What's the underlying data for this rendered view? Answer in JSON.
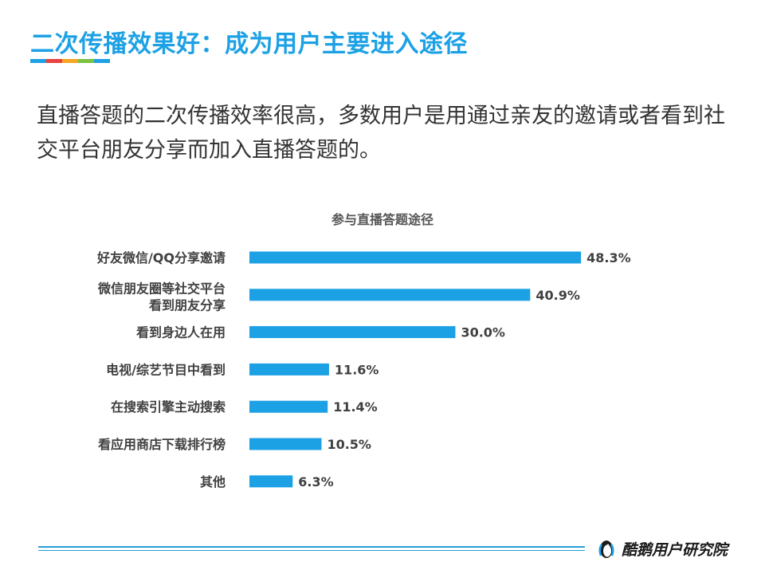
{
  "slide": {
    "title": "二次传播效果好：成为用户主要进入途径",
    "title_color": "#1da1e5",
    "underline_colors": [
      "#1da1e5",
      "#e8423f",
      "#f5a623",
      "#7cc142",
      "#1da1e5"
    ],
    "body": "直播答题的二次传播效率很高，多数用户是用通过亲友的邀请或者看到社交平台朋友分享而加入直播答题的。"
  },
  "chart_data": {
    "type": "bar",
    "orientation": "horizontal",
    "title": "参与直播答题途径",
    "categories": [
      [
        "好友微信/QQ分享邀请"
      ],
      [
        "微信朋友圈等社交平台",
        "看到朋友分享"
      ],
      [
        "看到身边人在用"
      ],
      [
        "电视/综艺节目中看到"
      ],
      [
        "在搜索引擎主动搜索"
      ],
      [
        "看应用商店下载排行榜"
      ],
      [
        "其他"
      ]
    ],
    "values": [
      48.3,
      40.9,
      30.0,
      11.6,
      11.4,
      10.5,
      6.3
    ],
    "value_labels": [
      "48.3%",
      "40.9%",
      "30.0%",
      "11.6%",
      "11.4%",
      "10.5%",
      "6.3%"
    ],
    "bar_color": "#1da1e5",
    "xlim": [
      0,
      50
    ],
    "grid": false,
    "legend": "none"
  },
  "footer": {
    "brand": "酷鹅用户研究院",
    "logo_icon": "penguin-logo-icon",
    "line_color": "#2a9fd6"
  }
}
